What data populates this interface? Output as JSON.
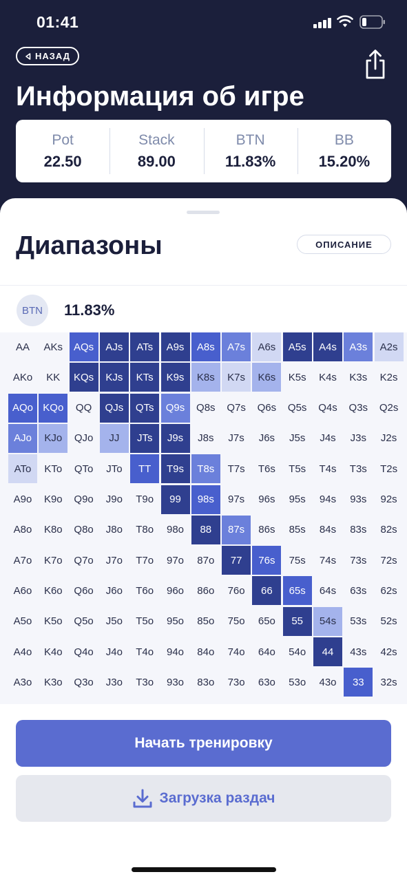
{
  "status_bar": {
    "time": "01:41"
  },
  "header": {
    "back_label": "НАЗАД",
    "title": "Информация об игре"
  },
  "stats": [
    {
      "label": "Pot",
      "value": "22.50"
    },
    {
      "label": "Stack",
      "value": "89.00"
    },
    {
      "label": "BTN",
      "value": "11.83%"
    },
    {
      "label": "BB",
      "value": "15.20%"
    }
  ],
  "ranges": {
    "title": "Диапазоны",
    "description_button": "ОПИСАНИЕ",
    "position_badge": "BTN",
    "position_percent": "11.83%",
    "colors": {
      "level_1": "#d1d8f3",
      "level_2": "#a4b3ec",
      "level_3": "#6b80db",
      "level_4": "#485fcd",
      "level_5": "#2f3f8f"
    },
    "grid": [
      [
        {
          "h": "AA",
          "f": 0
        },
        {
          "h": "AKs",
          "f": 0
        },
        {
          "h": "AQs",
          "f": 4
        },
        {
          "h": "AJs",
          "f": 5
        },
        {
          "h": "ATs",
          "f": 5
        },
        {
          "h": "A9s",
          "f": 5
        },
        {
          "h": "A8s",
          "f": 4
        },
        {
          "h": "A7s",
          "f": 3
        },
        {
          "h": "A6s",
          "f": 1
        },
        {
          "h": "A5s",
          "f": 5
        },
        {
          "h": "A4s",
          "f": 5
        },
        {
          "h": "A3s",
          "f": 3
        },
        {
          "h": "A2s",
          "f": 1
        }
      ],
      [
        {
          "h": "AKo",
          "f": 0
        },
        {
          "h": "KK",
          "f": 0
        },
        {
          "h": "KQs",
          "f": 5
        },
        {
          "h": "KJs",
          "f": 5
        },
        {
          "h": "KTs",
          "f": 5
        },
        {
          "h": "K9s",
          "f": 5
        },
        {
          "h": "K8s",
          "f": 2
        },
        {
          "h": "K7s",
          "f": 1
        },
        {
          "h": "K6s",
          "f": 2
        },
        {
          "h": "K5s",
          "f": 0
        },
        {
          "h": "K4s",
          "f": 0
        },
        {
          "h": "K3s",
          "f": 0
        },
        {
          "h": "K2s",
          "f": 0
        }
      ],
      [
        {
          "h": "AQo",
          "f": 4
        },
        {
          "h": "KQo",
          "f": 4
        },
        {
          "h": "QQ",
          "f": 0
        },
        {
          "h": "QJs",
          "f": 5
        },
        {
          "h": "QTs",
          "f": 5
        },
        {
          "h": "Q9s",
          "f": 3
        },
        {
          "h": "Q8s",
          "f": 0
        },
        {
          "h": "Q7s",
          "f": 0
        },
        {
          "h": "Q6s",
          "f": 0
        },
        {
          "h": "Q5s",
          "f": 0
        },
        {
          "h": "Q4s",
          "f": 0
        },
        {
          "h": "Q3s",
          "f": 0
        },
        {
          "h": "Q2s",
          "f": 0
        }
      ],
      [
        {
          "h": "AJo",
          "f": 3
        },
        {
          "h": "KJo",
          "f": 2
        },
        {
          "h": "QJo",
          "f": 0
        },
        {
          "h": "JJ",
          "f": 2
        },
        {
          "h": "JTs",
          "f": 5
        },
        {
          "h": "J9s",
          "f": 5
        },
        {
          "h": "J8s",
          "f": 0
        },
        {
          "h": "J7s",
          "f": 0
        },
        {
          "h": "J6s",
          "f": 0
        },
        {
          "h": "J5s",
          "f": 0
        },
        {
          "h": "J4s",
          "f": 0
        },
        {
          "h": "J3s",
          "f": 0
        },
        {
          "h": "J2s",
          "f": 0
        }
      ],
      [
        {
          "h": "ATo",
          "f": 1
        },
        {
          "h": "KTo",
          "f": 0
        },
        {
          "h": "QTo",
          "f": 0
        },
        {
          "h": "JTo",
          "f": 0
        },
        {
          "h": "TT",
          "f": 4
        },
        {
          "h": "T9s",
          "f": 5
        },
        {
          "h": "T8s",
          "f": 3
        },
        {
          "h": "T7s",
          "f": 0
        },
        {
          "h": "T6s",
          "f": 0
        },
        {
          "h": "T5s",
          "f": 0
        },
        {
          "h": "T4s",
          "f": 0
        },
        {
          "h": "T3s",
          "f": 0
        },
        {
          "h": "T2s",
          "f": 0
        }
      ],
      [
        {
          "h": "A9o",
          "f": 0
        },
        {
          "h": "K9o",
          "f": 0
        },
        {
          "h": "Q9o",
          "f": 0
        },
        {
          "h": "J9o",
          "f": 0
        },
        {
          "h": "T9o",
          "f": 0
        },
        {
          "h": "99",
          "f": 5
        },
        {
          "h": "98s",
          "f": 4
        },
        {
          "h": "97s",
          "f": 0
        },
        {
          "h": "96s",
          "f": 0
        },
        {
          "h": "95s",
          "f": 0
        },
        {
          "h": "94s",
          "f": 0
        },
        {
          "h": "93s",
          "f": 0
        },
        {
          "h": "92s",
          "f": 0
        }
      ],
      [
        {
          "h": "A8o",
          "f": 0
        },
        {
          "h": "K8o",
          "f": 0
        },
        {
          "h": "Q8o",
          "f": 0
        },
        {
          "h": "J8o",
          "f": 0
        },
        {
          "h": "T8o",
          "f": 0
        },
        {
          "h": "98o",
          "f": 0
        },
        {
          "h": "88",
          "f": 5
        },
        {
          "h": "87s",
          "f": 3
        },
        {
          "h": "86s",
          "f": 0
        },
        {
          "h": "85s",
          "f": 0
        },
        {
          "h": "84s",
          "f": 0
        },
        {
          "h": "83s",
          "f": 0
        },
        {
          "h": "82s",
          "f": 0
        }
      ],
      [
        {
          "h": "A7o",
          "f": 0
        },
        {
          "h": "K7o",
          "f": 0
        },
        {
          "h": "Q7o",
          "f": 0
        },
        {
          "h": "J7o",
          "f": 0
        },
        {
          "h": "T7o",
          "f": 0
        },
        {
          "h": "97o",
          "f": 0
        },
        {
          "h": "87o",
          "f": 0
        },
        {
          "h": "77",
          "f": 5
        },
        {
          "h": "76s",
          "f": 4
        },
        {
          "h": "75s",
          "f": 0
        },
        {
          "h": "74s",
          "f": 0
        },
        {
          "h": "73s",
          "f": 0
        },
        {
          "h": "72s",
          "f": 0
        }
      ],
      [
        {
          "h": "A6o",
          "f": 0
        },
        {
          "h": "K6o",
          "f": 0
        },
        {
          "h": "Q6o",
          "f": 0
        },
        {
          "h": "J6o",
          "f": 0
        },
        {
          "h": "T6o",
          "f": 0
        },
        {
          "h": "96o",
          "f": 0
        },
        {
          "h": "86o",
          "f": 0
        },
        {
          "h": "76o",
          "f": 0
        },
        {
          "h": "66",
          "f": 5
        },
        {
          "h": "65s",
          "f": 4
        },
        {
          "h": "64s",
          "f": 0
        },
        {
          "h": "63s",
          "f": 0
        },
        {
          "h": "62s",
          "f": 0
        }
      ],
      [
        {
          "h": "A5o",
          "f": 0
        },
        {
          "h": "K5o",
          "f": 0
        },
        {
          "h": "Q5o",
          "f": 0
        },
        {
          "h": "J5o",
          "f": 0
        },
        {
          "h": "T5o",
          "f": 0
        },
        {
          "h": "95o",
          "f": 0
        },
        {
          "h": "85o",
          "f": 0
        },
        {
          "h": "75o",
          "f": 0
        },
        {
          "h": "65o",
          "f": 0
        },
        {
          "h": "55",
          "f": 5
        },
        {
          "h": "54s",
          "f": 2
        },
        {
          "h": "53s",
          "f": 0
        },
        {
          "h": "52s",
          "f": 0
        }
      ],
      [
        {
          "h": "A4o",
          "f": 0
        },
        {
          "h": "K4o",
          "f": 0
        },
        {
          "h": "Q4o",
          "f": 0
        },
        {
          "h": "J4o",
          "f": 0
        },
        {
          "h": "T4o",
          "f": 0
        },
        {
          "h": "94o",
          "f": 0
        },
        {
          "h": "84o",
          "f": 0
        },
        {
          "h": "74o",
          "f": 0
        },
        {
          "h": "64o",
          "f": 0
        },
        {
          "h": "54o",
          "f": 0
        },
        {
          "h": "44",
          "f": 5
        },
        {
          "h": "43s",
          "f": 0
        },
        {
          "h": "42s",
          "f": 0
        }
      ],
      [
        {
          "h": "A3o",
          "f": 0
        },
        {
          "h": "K3o",
          "f": 0
        },
        {
          "h": "Q3o",
          "f": 0
        },
        {
          "h": "J3o",
          "f": 0
        },
        {
          "h": "T3o",
          "f": 0
        },
        {
          "h": "93o",
          "f": 0
        },
        {
          "h": "83o",
          "f": 0
        },
        {
          "h": "73o",
          "f": 0
        },
        {
          "h": "63o",
          "f": 0
        },
        {
          "h": "53o",
          "f": 0
        },
        {
          "h": "43o",
          "f": 0
        },
        {
          "h": "33",
          "f": 4
        },
        {
          "h": "32s",
          "f": 0
        }
      ]
    ]
  },
  "actions": {
    "start_training": "Начать тренировку",
    "upload_hands": "Загрузка раздач"
  }
}
